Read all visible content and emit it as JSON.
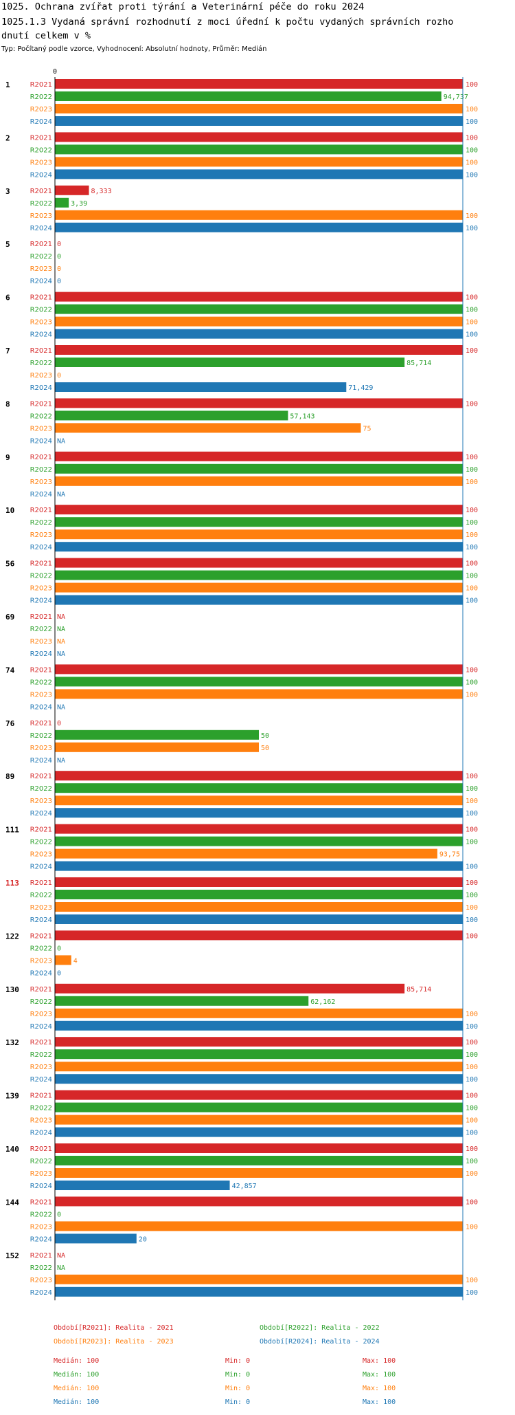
{
  "header": {
    "title_line1": "1025. Ochrana zvířat proti týrání a Veterinární péče do roku 2024",
    "title_line2": "1025.1.3 Vydaná správní rozhodnutí z moci úřední k počtu vydaných správních rozho",
    "title_line3": "dnutí celkem v %",
    "subtitle": "Typ: Počítaný podle vzorce, Vyhodnocení: Absolutní hodnoty, Průměr: Medián"
  },
  "colors": {
    "R2021": "#d62728",
    "R2022": "#2ca02c",
    "R2023": "#ff7f0e",
    "R2024": "#1f77b4",
    "highlight": "#d62728"
  },
  "chart_data": {
    "type": "bar",
    "orientation": "horizontal",
    "axis_tick_label": "0",
    "xlim": [
      0,
      100
    ],
    "series_names": [
      "R2021",
      "R2022",
      "R2023",
      "R2024"
    ],
    "categories": [
      {
        "label": "1",
        "values": [
          100,
          94.737,
          100,
          100
        ],
        "labels": [
          "100",
          "94,737",
          "100",
          "100"
        ]
      },
      {
        "label": "2",
        "values": [
          100,
          100,
          100,
          100
        ],
        "labels": [
          "100",
          "100",
          "100",
          "100"
        ]
      },
      {
        "label": "3",
        "values": [
          8.333,
          3.39,
          100,
          100
        ],
        "labels": [
          "8,333",
          "3,39",
          "100",
          "100"
        ]
      },
      {
        "label": "5",
        "values": [
          0,
          0,
          0,
          0
        ],
        "labels": [
          "0",
          "0",
          "0",
          "0"
        ]
      },
      {
        "label": "6",
        "values": [
          100,
          100,
          100,
          100
        ],
        "labels": [
          "100",
          "100",
          "100",
          "100"
        ]
      },
      {
        "label": "7",
        "values": [
          100,
          85.714,
          0,
          71.429
        ],
        "labels": [
          "100",
          "85,714",
          "0",
          "71,429"
        ]
      },
      {
        "label": "8",
        "values": [
          100,
          57.143,
          75,
          null
        ],
        "labels": [
          "100",
          "57,143",
          "75",
          "NA"
        ]
      },
      {
        "label": "9",
        "values": [
          100,
          100,
          100,
          null
        ],
        "labels": [
          "100",
          "100",
          "100",
          "NA"
        ]
      },
      {
        "label": "10",
        "values": [
          100,
          100,
          100,
          100
        ],
        "labels": [
          "100",
          "100",
          "100",
          "100"
        ]
      },
      {
        "label": "56",
        "values": [
          100,
          100,
          100,
          100
        ],
        "labels": [
          "100",
          "100",
          "100",
          "100"
        ]
      },
      {
        "label": "69",
        "values": [
          null,
          null,
          null,
          null
        ],
        "labels": [
          "NA",
          "NA",
          "NA",
          "NA"
        ]
      },
      {
        "label": "74",
        "values": [
          100,
          100,
          100,
          null
        ],
        "labels": [
          "100",
          "100",
          "100",
          "NA"
        ]
      },
      {
        "label": "76",
        "values": [
          0,
          50,
          50,
          null
        ],
        "labels": [
          "0",
          "50",
          "50",
          "NA"
        ]
      },
      {
        "label": "89",
        "values": [
          100,
          100,
          100,
          100
        ],
        "labels": [
          "100",
          "100",
          "100",
          "100"
        ]
      },
      {
        "label": "111",
        "values": [
          100,
          100,
          93.75,
          100
        ],
        "labels": [
          "100",
          "100",
          "93,75",
          "100"
        ]
      },
      {
        "label": "113",
        "highlight": true,
        "values": [
          100,
          100,
          100,
          100
        ],
        "labels": [
          "100",
          "100",
          "100",
          "100"
        ]
      },
      {
        "label": "122",
        "values": [
          100,
          0,
          4,
          0
        ],
        "labels": [
          "100",
          "0",
          "4",
          "0"
        ]
      },
      {
        "label": "130",
        "values": [
          85.714,
          62.162,
          100,
          100
        ],
        "labels": [
          "85,714",
          "62,162",
          "100",
          "100"
        ]
      },
      {
        "label": "132",
        "values": [
          100,
          100,
          100,
          100
        ],
        "labels": [
          "100",
          "100",
          "100",
          "100"
        ]
      },
      {
        "label": "139",
        "values": [
          100,
          100,
          100,
          100
        ],
        "labels": [
          "100",
          "100",
          "100",
          "100"
        ]
      },
      {
        "label": "140",
        "values": [
          100,
          100,
          100,
          42.857
        ],
        "labels": [
          "100",
          "100",
          "100",
          "42,857"
        ]
      },
      {
        "label": "144",
        "values": [
          100,
          0,
          100,
          20
        ],
        "labels": [
          "100",
          "0",
          "100",
          "20"
        ]
      },
      {
        "label": "152",
        "values": [
          null,
          null,
          100,
          100
        ],
        "labels": [
          "NA",
          "NA",
          "100",
          "100"
        ]
      }
    ],
    "legend": [
      "Období[R2021]: Realita - 2021",
      "Období[R2022]: Realita - 2022",
      "Období[R2023]: Realita - 2023",
      "Období[R2024]: Realita - 2024"
    ],
    "stats": [
      {
        "median": "Medián: 100",
        "min": "Min: 0",
        "max": "Max: 100"
      },
      {
        "median": "Medián: 100",
        "min": "Min: 0",
        "max": "Max: 100"
      },
      {
        "median": "Medián: 100",
        "min": "Min: 0",
        "max": "Max: 100"
      },
      {
        "median": "Medián: 100",
        "min": "Min: 0",
        "max": "Max: 100"
      }
    ]
  }
}
